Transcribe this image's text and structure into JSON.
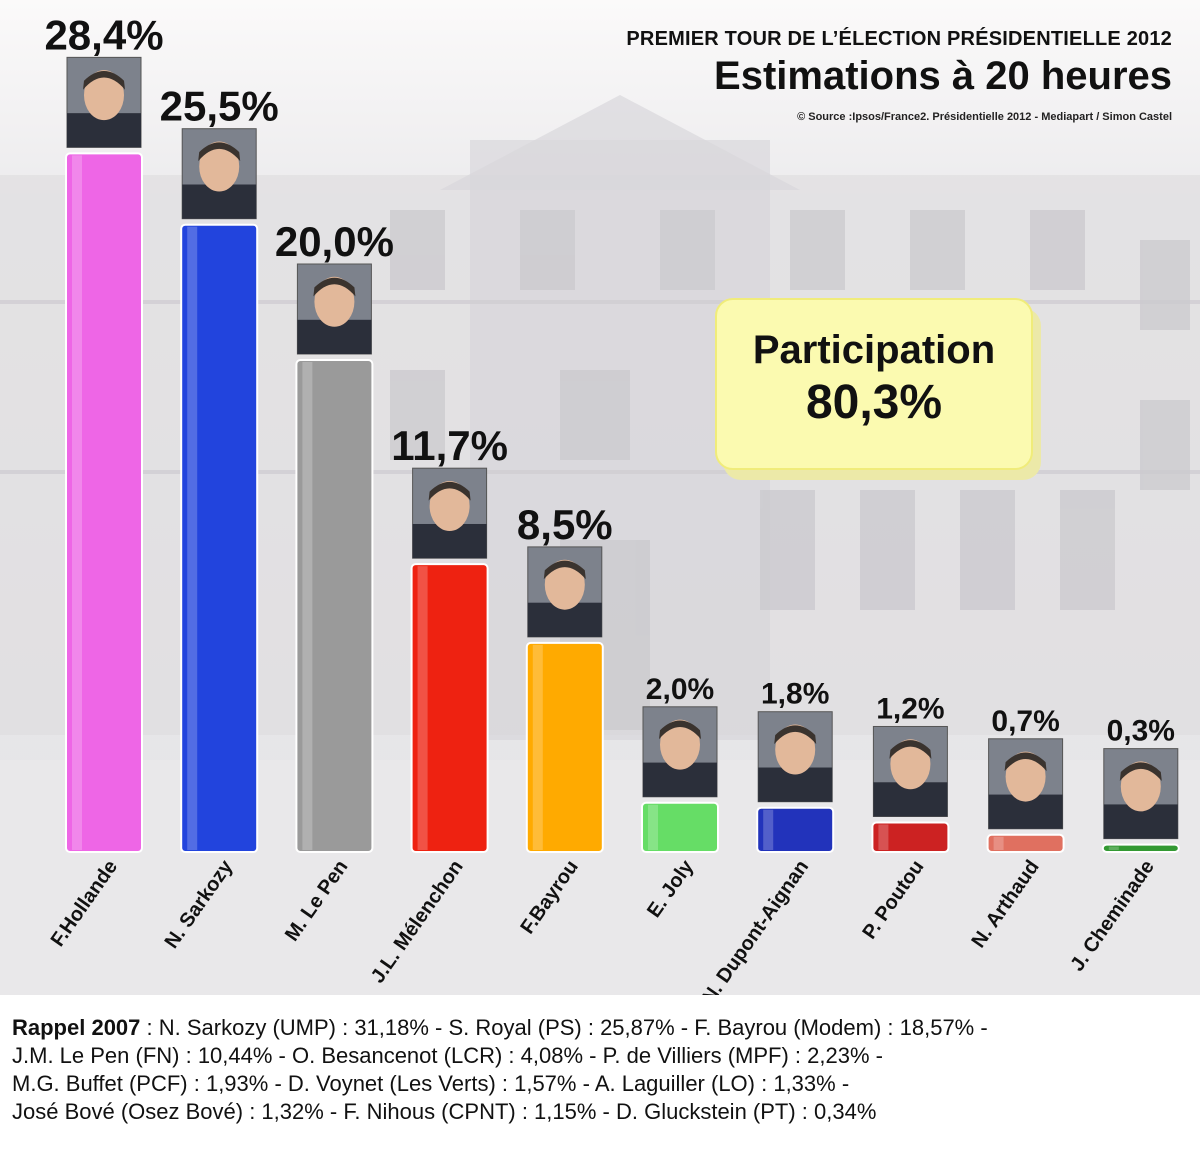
{
  "header": {
    "supertitle": "PREMIER TOUR DE L’ÉLECTION PRÉSIDENTIELLE 2012",
    "title": "Estimations à 20 heures",
    "source": "© Source :Ipsos/France2. Présidentielle 2012 - Mediapart / Simon Castel"
  },
  "participation": {
    "label": "Participation",
    "value": "80,3%"
  },
  "chart_data": {
    "type": "bar",
    "title": "Estimations à 20 heures",
    "xlabel": "",
    "ylabel": "",
    "ylim": [
      0,
      30
    ],
    "grid": false,
    "categories": [
      "F.Hollande",
      "N. Sarkozy",
      "M. Le Pen",
      "J.L. Mélenchon",
      "F.Bayrou",
      "E. Joly",
      "N. Dupont-Aignan",
      "P. Poutou",
      "N. Arthaud",
      "J. Cheminade"
    ],
    "values": [
      28.4,
      25.5,
      20.0,
      11.7,
      8.5,
      2.0,
      1.8,
      1.2,
      0.7,
      0.3
    ],
    "value_labels": [
      "28,4%",
      "25,5%",
      "20,0%",
      "11,7%",
      "8,5%",
      "2,0%",
      "1,8%",
      "1,2%",
      "0,7%",
      "0,3%"
    ],
    "colors": [
      "#ee66e6",
      "#2244dd",
      "#9a9a9a",
      "#ee2211",
      "#ffaa00",
      "#66dd66",
      "#2233bb",
      "#cc2222",
      "#e07060",
      "#339933"
    ]
  },
  "footer": {
    "lead": "Rappel 2007",
    "lines": [
      " : N. Sarkozy (UMP) : 31,18% - S. Royal (PS) : 25,87% - F. Bayrou (Modem) : 18,57% -",
      "J.M. Le Pen (FN) : 10,44% - O. Besancenot (LCR) : 4,08% - P. de Villiers (MPF) : 2,23% -",
      "M.G. Buffet (PCF) : 1,93% - D. Voynet (Les Verts) : 1,57% - A. Laguiller (LO) : 1,33% -",
      "José Bové (Osez Bové) : 1,32% - F. Nihous (CPNT) : 1,15% - D. Gluckstein (PT) : 0,34%"
    ]
  }
}
